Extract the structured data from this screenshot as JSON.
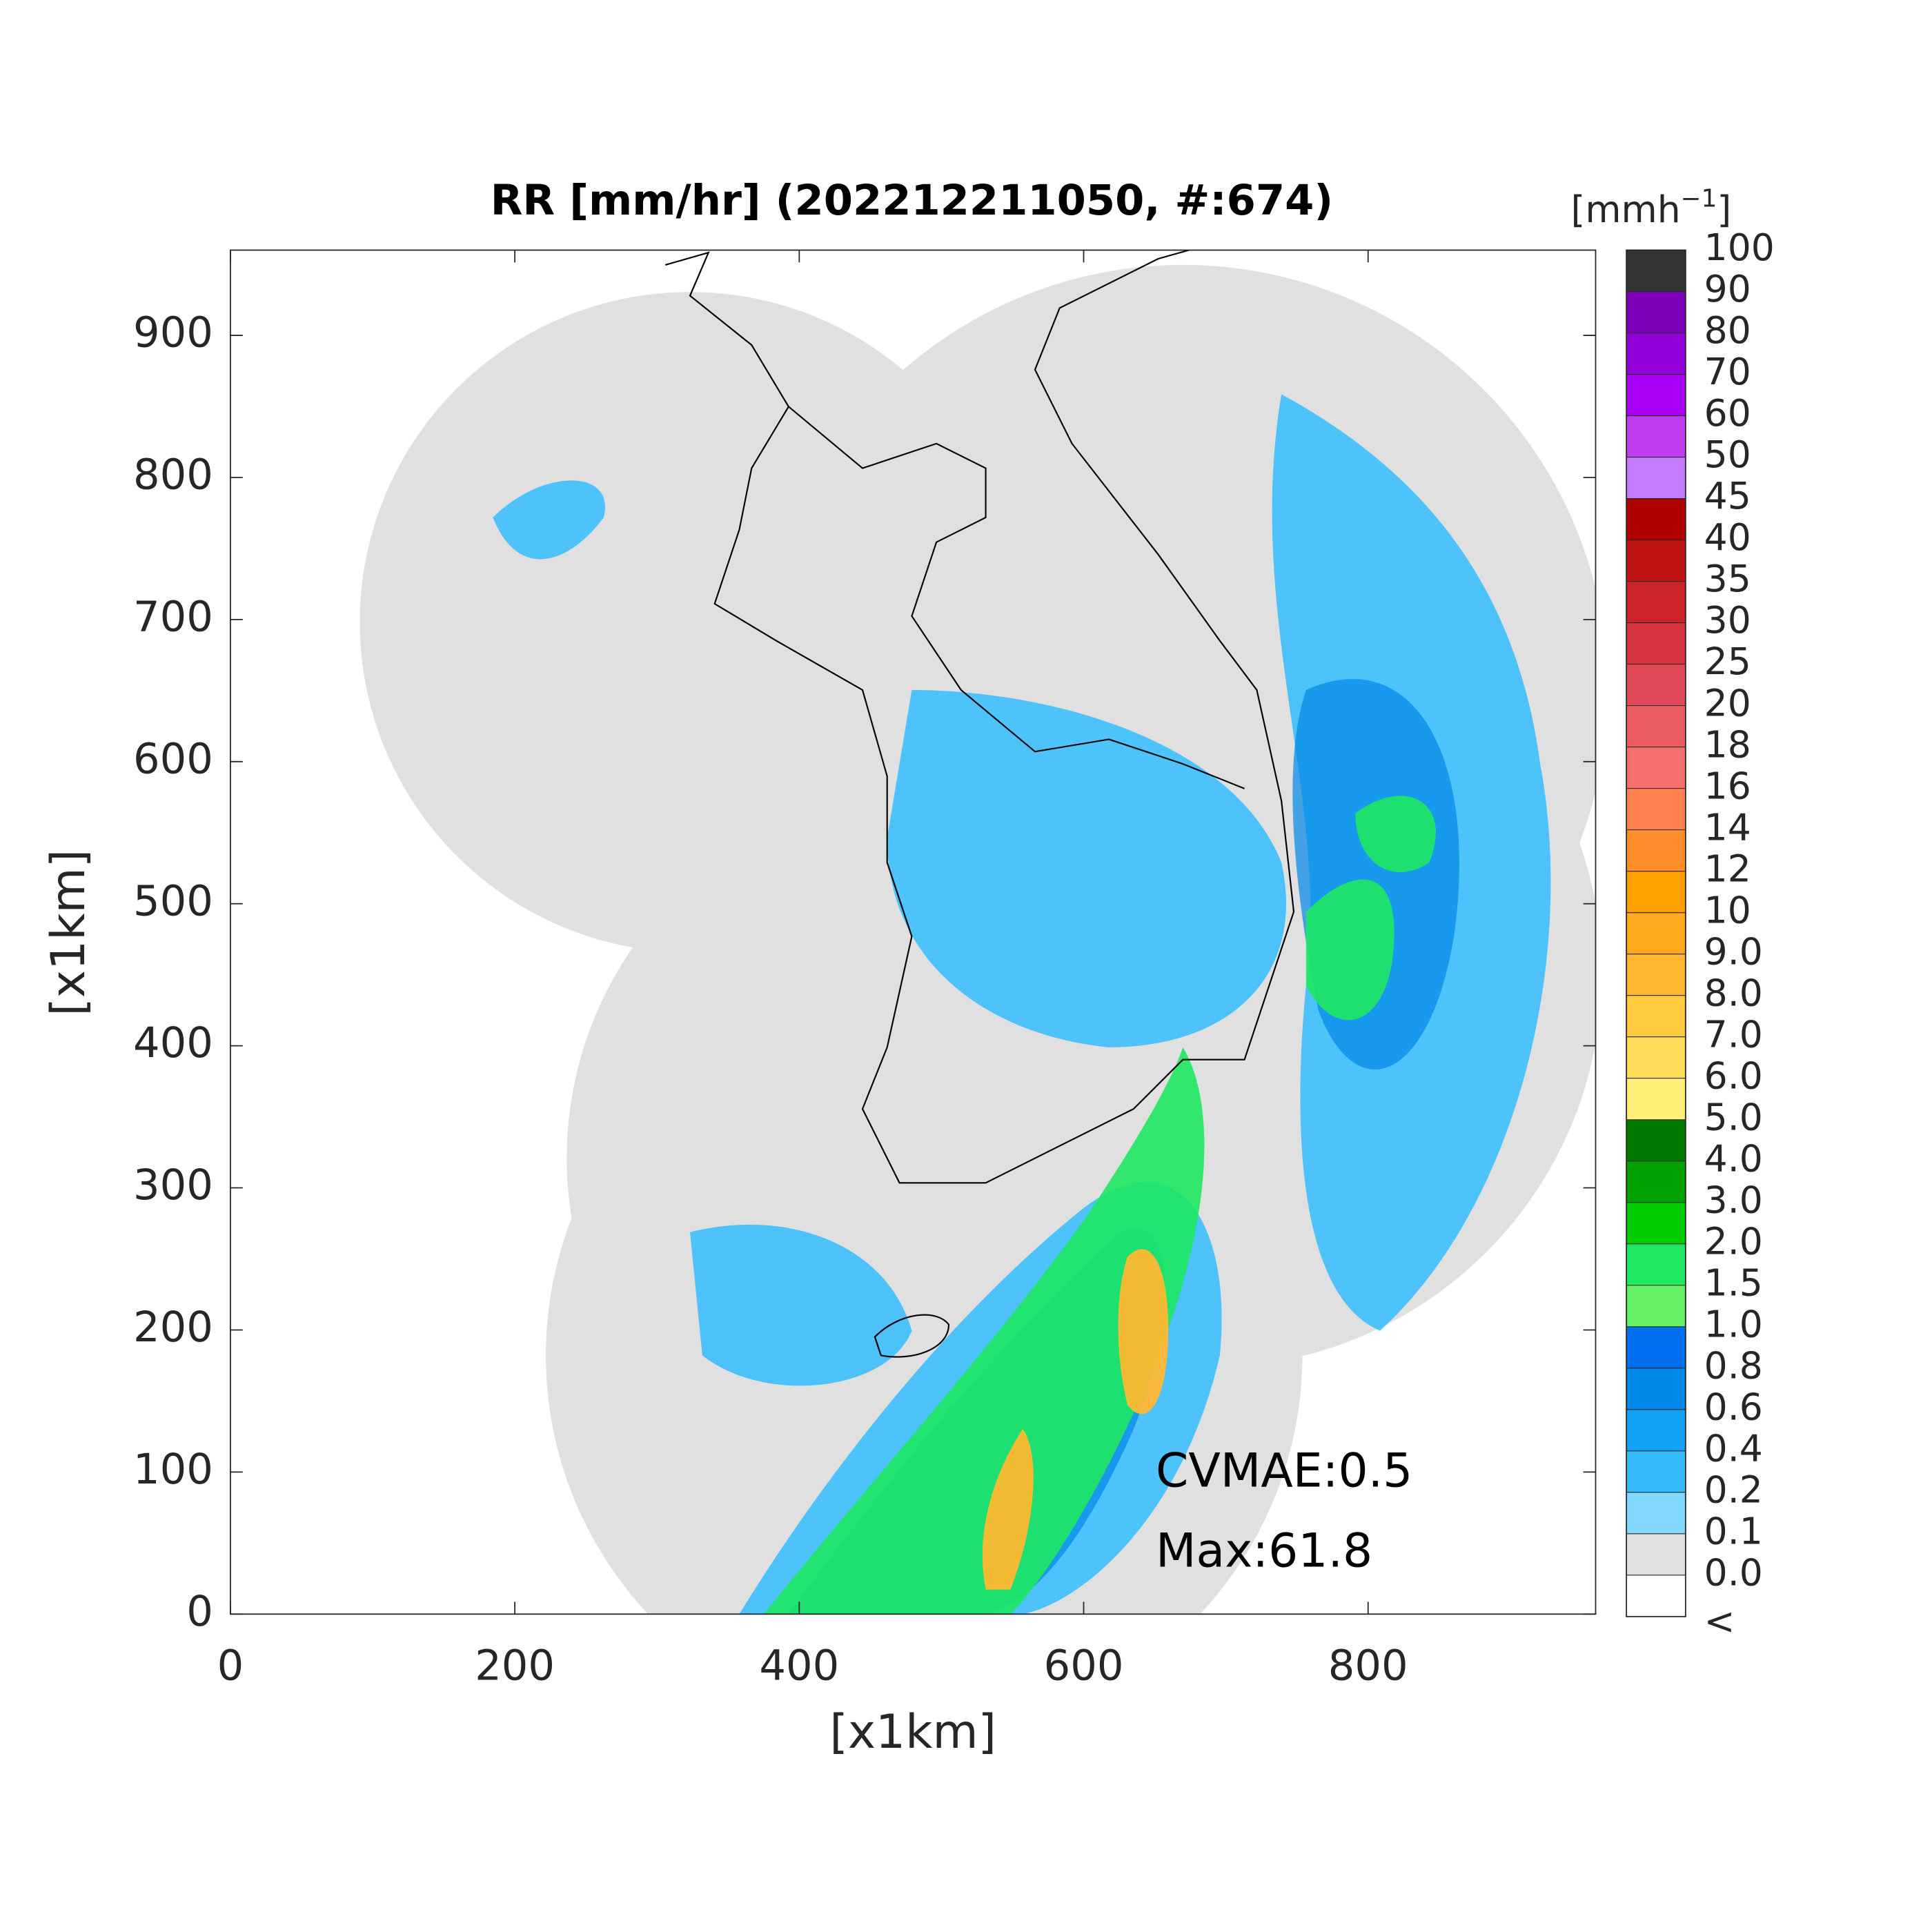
{
  "chart_data": {
    "type": "map",
    "title": "RR [mm/hr] (202212211050, #:674)",
    "x_label": "[x1km]",
    "y_label": "[x1km]",
    "xlim": [
      0,
      960
    ],
    "ylim": [
      0,
      960
    ],
    "xticks": [
      0,
      200,
      400,
      600,
      800
    ],
    "yticks": [
      0,
      100,
      200,
      300,
      400,
      500,
      600,
      700,
      800,
      900
    ],
    "annotations": [
      "CVMAE:0.5",
      "Max:61.8"
    ],
    "colorbar": {
      "label_parts": [
        "[mmh",
        "−1",
        "]"
      ],
      "ticks": [
        100,
        90,
        80,
        70,
        60,
        50,
        45,
        40,
        35,
        30,
        25,
        20,
        18,
        16,
        14,
        12,
        10,
        {
          "value": 9,
          "label": "9.0"
        },
        {
          "value": 8,
          "label": "8.0"
        },
        {
          "value": 7,
          "label": "7.0"
        },
        {
          "value": 6,
          "label": "6.0"
        },
        {
          "value": 5,
          "label": "5.0"
        },
        {
          "value": 4,
          "label": "4.0"
        },
        {
          "value": 3,
          "label": "3.0"
        },
        {
          "value": 2,
          "label": "2.0"
        },
        1.5,
        {
          "value": 1,
          "label": "1.0"
        },
        0.8,
        0.6,
        0.4,
        0.2,
        0.1,
        {
          "value": 0,
          "label": "0.0"
        }
      ],
      "under_label": "<",
      "colors": [
        "#333333",
        "#7e00b8",
        "#9200d8",
        "#aa00f8",
        "#c03cf0",
        "#c47cff",
        "#b00000",
        "#c01414",
        "#cc2428",
        "#d83440",
        "#e04a58",
        "#ea5c64",
        "#f67070",
        "#ff8050",
        "#ff8e2a",
        "#ffa000",
        "#ffaa1e",
        "#ffb830",
        "#ffcc40",
        "#ffdc58",
        "#fff078",
        "#007a00",
        "#00a000",
        "#00cc00",
        "#1ee862",
        "#64f064",
        "#0070f0",
        "#0088e8",
        "#10a2f4",
        "#34bcff",
        "#84d8ff",
        "#e0e0e0",
        "#ffffff"
      ]
    }
  }
}
